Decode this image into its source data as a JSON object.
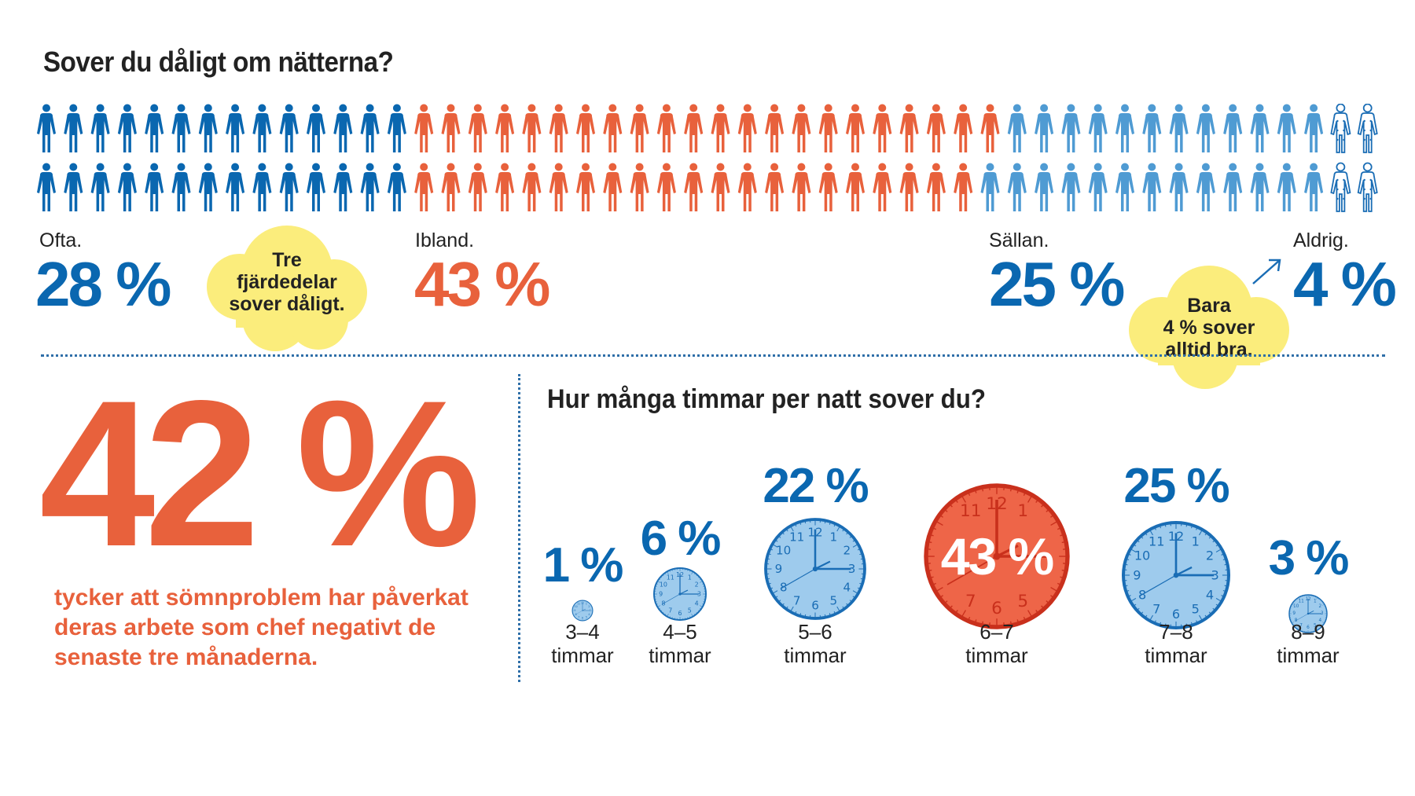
{
  "title": "Sover du dåligt om nätterna?",
  "colors": {
    "often": "#0a67b0",
    "sometimes": "#e8613c",
    "rarely": "#4f9bd3",
    "never": "#1a6db5",
    "cloud": "#fbed7c",
    "clock_fill": "#9ecbed",
    "clock_red": "#ee6548"
  },
  "icons": {
    "person": "person-icon",
    "woman": "woman-outline-icon",
    "clock": "clock-icon",
    "arrow": "arrow-up-right-icon",
    "cloud": "cloud-shape"
  },
  "categories": [
    {
      "label": "Ofta.",
      "value": "28 %"
    },
    {
      "label": "Ibland.",
      "value": "43 %"
    },
    {
      "label": "Sällan.",
      "value": "25 %"
    },
    {
      "label": "Aldrig.",
      "value": "4 %"
    }
  ],
  "cloud1": {
    "lines": [
      "Tre",
      "fjärdedelar",
      "sover dåligt."
    ]
  },
  "cloud2": {
    "lines": [
      "Bara",
      "4 % sover",
      "alltid bra."
    ]
  },
  "stat": {
    "value": "42 %",
    "text": "tycker att sömnproblem har påverkat deras arbete som chef negativt de senaste tre månaderna."
  },
  "title2": "Hur många timmar per natt sover du?",
  "hours": [
    {
      "range": "3–4",
      "unit": "timmar",
      "value": "1 %"
    },
    {
      "range": "4–5",
      "unit": "timmar",
      "value": "6 %"
    },
    {
      "range": "5–6",
      "unit": "timmar",
      "value": "22 %"
    },
    {
      "range": "6–7",
      "unit": "timmar",
      "value": "43 %"
    },
    {
      "range": "7–8",
      "unit": "timmar",
      "value": "25 %"
    },
    {
      "range": "8–9",
      "unit": "timmar",
      "value": "3 %"
    }
  ],
  "chart_data": [
    {
      "type": "pictogram",
      "title": "Sover du dåligt om nätterna?",
      "categories": [
        "Ofta.",
        "Ibland.",
        "Sällan.",
        "Aldrig."
      ],
      "values": [
        28,
        43,
        25,
        4
      ],
      "unit": "%",
      "rows": [
        [
          14,
          22,
          12,
          2
        ],
        [
          14,
          21,
          13,
          2
        ]
      ]
    },
    {
      "type": "bubble",
      "title": "Hur många timmar per natt sover du?",
      "categories": [
        "3–4 timmar",
        "4–5 timmar",
        "5–6 timmar",
        "6–7 timmar",
        "7–8 timmar",
        "8–9 timmar"
      ],
      "values": [
        1,
        6,
        22,
        43,
        25,
        3
      ],
      "unit": "%"
    }
  ]
}
